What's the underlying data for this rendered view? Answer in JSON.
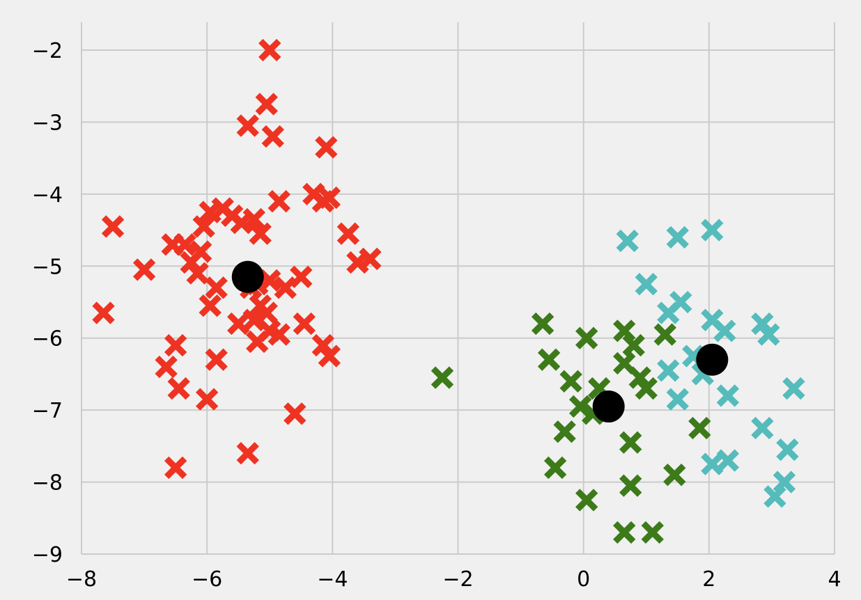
{
  "chart_data": {
    "type": "scatter",
    "title": "",
    "xlabel": "",
    "ylabel": "",
    "xlim": [
      -8.1,
      4.0
    ],
    "ylim": [
      -9.0,
      -1.6
    ],
    "x_ticks": [
      -8,
      -6,
      -4,
      -2,
      0,
      2,
      4
    ],
    "y_ticks": [
      -2,
      -3,
      -4,
      -5,
      -6,
      -7,
      -8,
      -9
    ],
    "x_tick_labels": [
      "−8",
      "−6",
      "−4",
      "−2",
      "0",
      "2",
      "4"
    ],
    "y_tick_labels": [
      "−2",
      "−3",
      "−4",
      "−5",
      "−6",
      "−7",
      "−8",
      "−9"
    ],
    "grid": true,
    "series": [
      {
        "marker": "x",
        "color": "#ee3322",
        "points": [
          [
            -5.0,
            -2.0
          ],
          [
            -5.05,
            -2.75
          ],
          [
            -5.35,
            -3.05
          ],
          [
            -4.95,
            -3.2
          ],
          [
            -4.1,
            -3.35
          ],
          [
            -4.3,
            -4.0
          ],
          [
            -4.15,
            -4.1
          ],
          [
            -4.05,
            -4.05
          ],
          [
            -4.85,
            -4.1
          ],
          [
            -5.95,
            -4.25
          ],
          [
            -5.75,
            -4.2
          ],
          [
            -5.6,
            -4.3
          ],
          [
            -5.45,
            -4.4
          ],
          [
            -5.25,
            -4.35
          ],
          [
            -5.15,
            -4.55
          ],
          [
            -6.05,
            -4.45
          ],
          [
            -7.5,
            -4.45
          ],
          [
            -6.55,
            -4.7
          ],
          [
            -6.35,
            -4.7
          ],
          [
            -6.1,
            -4.8
          ],
          [
            -6.25,
            -4.95
          ],
          [
            -7.0,
            -5.05
          ],
          [
            -6.15,
            -5.1
          ],
          [
            -5.85,
            -5.3
          ],
          [
            -5.95,
            -5.55
          ],
          [
            -5.3,
            -5.3
          ],
          [
            -5.2,
            -5.25
          ],
          [
            -5.0,
            -5.2
          ],
          [
            -4.75,
            -5.3
          ],
          [
            -4.5,
            -5.15
          ],
          [
            -3.75,
            -4.55
          ],
          [
            -3.6,
            -4.95
          ],
          [
            -3.4,
            -4.9
          ],
          [
            -5.15,
            -5.55
          ],
          [
            -5.05,
            -5.65
          ],
          [
            -5.25,
            -5.75
          ],
          [
            -5.5,
            -5.8
          ],
          [
            -5.0,
            -5.9
          ],
          [
            -4.85,
            -5.95
          ],
          [
            -4.45,
            -5.8
          ],
          [
            -4.15,
            -6.1
          ],
          [
            -4.05,
            -6.25
          ],
          [
            -5.2,
            -6.05
          ],
          [
            -7.65,
            -5.65
          ],
          [
            -6.5,
            -6.1
          ],
          [
            -6.65,
            -6.4
          ],
          [
            -5.85,
            -6.3
          ],
          [
            -6.45,
            -6.7
          ],
          [
            -6.0,
            -6.85
          ],
          [
            -4.6,
            -7.05
          ],
          [
            -5.35,
            -7.6
          ],
          [
            -6.5,
            -7.8
          ]
        ]
      },
      {
        "marker": "x",
        "color": "#3d7a1a",
        "points": [
          [
            -2.25,
            -6.55
          ],
          [
            -0.65,
            -5.8
          ],
          [
            0.05,
            -6.0
          ],
          [
            0.65,
            -5.9
          ],
          [
            0.8,
            -6.1
          ],
          [
            1.3,
            -5.95
          ],
          [
            -0.55,
            -6.3
          ],
          [
            -0.2,
            -6.6
          ],
          [
            0.65,
            -6.35
          ],
          [
            0.9,
            -6.55
          ],
          [
            1.0,
            -6.7
          ],
          [
            0.25,
            -6.7
          ],
          [
            -0.05,
            -6.95
          ],
          [
            0.15,
            -7.05
          ],
          [
            -0.3,
            -7.3
          ],
          [
            0.75,
            -7.45
          ],
          [
            1.85,
            -7.25
          ],
          [
            -0.45,
            -7.8
          ],
          [
            0.75,
            -8.05
          ],
          [
            1.45,
            -7.9
          ],
          [
            0.05,
            -8.25
          ],
          [
            0.65,
            -8.7
          ],
          [
            1.1,
            -8.7
          ]
        ]
      },
      {
        "marker": "x",
        "color": "#55bbbb",
        "points": [
          [
            0.7,
            -4.65
          ],
          [
            1.5,
            -4.6
          ],
          [
            2.05,
            -4.5
          ],
          [
            1.0,
            -5.25
          ],
          [
            1.55,
            -5.5
          ],
          [
            1.35,
            -5.65
          ],
          [
            2.05,
            -5.75
          ],
          [
            2.25,
            -5.9
          ],
          [
            2.85,
            -5.8
          ],
          [
            2.95,
            -5.95
          ],
          [
            1.75,
            -6.25
          ],
          [
            1.35,
            -6.45
          ],
          [
            1.9,
            -6.5
          ],
          [
            1.5,
            -6.85
          ],
          [
            2.3,
            -6.8
          ],
          [
            3.35,
            -6.7
          ],
          [
            2.85,
            -7.25
          ],
          [
            3.25,
            -7.55
          ],
          [
            2.05,
            -7.75
          ],
          [
            2.3,
            -7.7
          ],
          [
            3.2,
            -8.0
          ],
          [
            3.05,
            -8.2
          ]
        ]
      },
      {
        "marker": "o",
        "color": "#000000",
        "points": [
          [
            -5.35,
            -5.15
          ],
          [
            0.4,
            -6.95
          ],
          [
            2.05,
            -6.3
          ]
        ]
      }
    ]
  }
}
